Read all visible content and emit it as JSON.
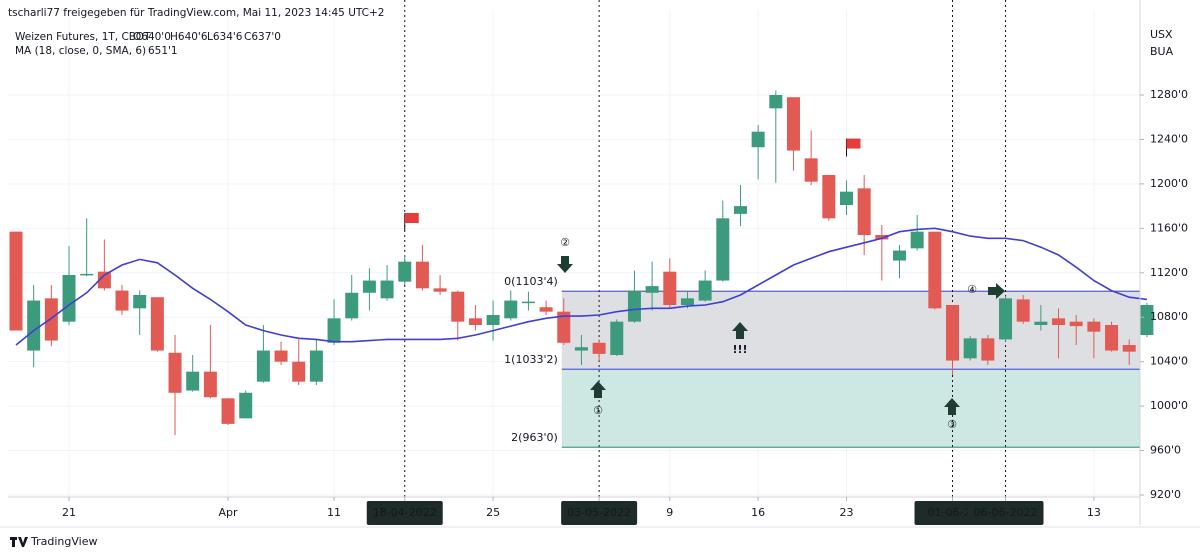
{
  "chart_data": {
    "type": "candlestick",
    "header": "tscharli77 freigegeben für TradingView.com, Mai 11, 2023 14:45 UTC+2",
    "symbol": "Weizen Futures, 1T, CBOT",
    "ohlc_labels": [
      "O640'0",
      "H640'6",
      "L634'6",
      "C637'0"
    ],
    "ma_name": "MA (18, close, 0, SMA, 6)",
    "ma_value": "651'1",
    "currency": "USX",
    "unit": "BUA",
    "brand": "TradingView",
    "categories": [
      null,
      null,
      null,
      "21",
      null,
      null,
      null,
      null,
      null,
      null,
      null,
      null,
      "Apr",
      null,
      null,
      null,
      null,
      null,
      "11",
      null,
      null,
      null,
      "18-04-2022",
      null,
      null,
      null,
      null,
      "25",
      null,
      null,
      null,
      null,
      null,
      "03-05-2022",
      null,
      null,
      null,
      "9",
      null,
      null,
      null,
      null,
      "16",
      null,
      null,
      null,
      null,
      "23",
      null,
      null,
      null,
      null,
      null,
      "01-06-20",
      null,
      null,
      "06-06-2022",
      null,
      null,
      null,
      null,
      "13",
      null,
      null,
      null
    ],
    "highlighted": [
      22,
      33,
      53,
      56
    ],
    "open": [
      1157,
      1050,
      1097,
      1076,
      1118,
      1121,
      1104,
      1088,
      1098,
      1048,
      1014,
      1031,
      1007,
      989,
      1022,
      1050,
      1040,
      1022,
      1057,
      1079,
      1102,
      1097,
      1112,
      1130,
      1106,
      1103,
      1079,
      1073,
      1079,
      1093,
      1089,
      1085,
      1050,
      1057,
      1046,
      1076,
      1102,
      1121,
      1091,
      1095,
      1113,
      1173,
      1233,
      1268,
      1278,
      1223,
      1208,
      1181,
      1196,
      1154,
      1131,
      1142,
      1157,
      1091,
      1043,
      1061,
      1060,
      1096,
      1073,
      1079,
      1076,
      1076,
      1073,
      1055,
      1064
    ],
    "high": [
      1157,
      1109,
      1109,
      1144,
      1169,
      1150,
      1109,
      1104,
      1098,
      1064,
      1046,
      1073,
      1007,
      1014,
      1073,
      1058,
      1060,
      1060,
      1096,
      1118,
      1124,
      1127,
      1136,
      1145,
      1118,
      1104,
      1091,
      1095,
      1104,
      1103,
      1095,
      1097,
      1064,
      1060,
      1078,
      1122,
      1130,
      1133,
      1104,
      1122,
      1185,
      1199,
      1253,
      1284,
      1278,
      1248,
      1208,
      1203,
      1208,
      1163,
      1145,
      1172,
      1157,
      1091,
      1063,
      1064,
      1099,
      1100,
      1091,
      1088,
      1082,
      1079,
      1076,
      1060,
      1093
    ],
    "low": [
      1068,
      1035,
      1054,
      1073,
      1117,
      1104,
      1082,
      1064,
      1049,
      974,
      1013,
      1007,
      983,
      989,
      1021,
      1037,
      1019,
      1019,
      1055,
      1077,
      1086,
      1095,
      1109,
      1104,
      1100,
      1059,
      1068,
      1059,
      1077,
      1086,
      1082,
      1055,
      1037,
      1041,
      1045,
      1075,
      1086,
      1088,
      1088,
      1094,
      1112,
      1162,
      1204,
      1201,
      1212,
      1199,
      1167,
      1172,
      1136,
      1113,
      1115,
      1140,
      1087,
      1028,
      1041,
      1037,
      1058,
      1074,
      1068,
      1043,
      1055,
      1043,
      1049,
      1037,
      1062
    ],
    "close": [
      1068,
      1095,
      1059,
      1118,
      1119,
      1106,
      1086,
      1100,
      1050,
      1012,
      1031,
      1008,
      984,
      1012,
      1050,
      1040,
      1022,
      1050,
      1079,
      1102,
      1113,
      1113,
      1130,
      1106,
      1103,
      1076,
      1073,
      1082,
      1095,
      1094,
      1085,
      1057,
      1053,
      1047,
      1076,
      1104,
      1108,
      1091,
      1097,
      1113,
      1169,
      1180,
      1247,
      1280,
      1230,
      1202,
      1169,
      1193,
      1154,
      1150,
      1140,
      1157,
      1088,
      1041,
      1061,
      1041,
      1097,
      1076,
      1076,
      1073,
      1072,
      1067,
      1050,
      1049,
      1091
    ],
    "ma": [
      1055,
      1068,
      1079,
      1091,
      1102,
      1118,
      1127,
      1132,
      1129,
      1118,
      1106,
      1096,
      1085,
      1073,
      1068,
      1064,
      1061,
      1060,
      1058,
      1058,
      1059,
      1060,
      1060,
      1060,
      1060,
      1061,
      1064,
      1068,
      1072,
      1076,
      1079,
      1081,
      1081,
      1082,
      1085,
      1087,
      1088,
      1088,
      1090,
      1091,
      1094,
      1100,
      1109,
      1118,
      1127,
      1133,
      1139,
      1143,
      1147,
      1151,
      1157,
      1159,
      1160,
      1157,
      1153,
      1151,
      1151,
      1149,
      1143,
      1136,
      1125,
      1113,
      1104,
      1098,
      1096
    ],
    "up_color": "#3d9b7d",
    "down_color": "#e25a54",
    "ma_color": "#3f3fd6",
    "ylim": [
      918.2,
      1356.5
    ],
    "yticks": [
      {
        "value": 920,
        "label": "920'0"
      },
      {
        "value": 960,
        "label": "960'0"
      },
      {
        "value": 1000,
        "label": "1000'0"
      },
      {
        "value": 1040,
        "label": "1040'0"
      },
      {
        "value": 1080,
        "label": "1080'0"
      },
      {
        "value": 1120,
        "label": "1120'0"
      },
      {
        "value": 1160,
        "label": "1160'0"
      },
      {
        "value": 1200,
        "label": "1200'0"
      },
      {
        "value": 1240,
        "label": "1240'0"
      },
      {
        "value": 1280,
        "label": "1280'0"
      }
    ],
    "fib_start": 31,
    "fib_levels": [
      {
        "value": 1103.4,
        "label": "0(1103'4)"
      },
      {
        "value": 1033.2,
        "label": "1(1033'2)"
      },
      {
        "value": 963,
        "label": "2(963'0)"
      }
    ],
    "fib_colors": [
      "#dedfe3",
      "#cde7e3"
    ],
    "fib_line_color": "#5a5fd0",
    "flags": [
      22,
      47
    ],
    "annotations": [
      {
        "text": "②"
      },
      {
        "text": "①"
      },
      {
        "text": "!!!"
      },
      {
        "text": "③"
      },
      {
        "text": "④"
      }
    ]
  }
}
